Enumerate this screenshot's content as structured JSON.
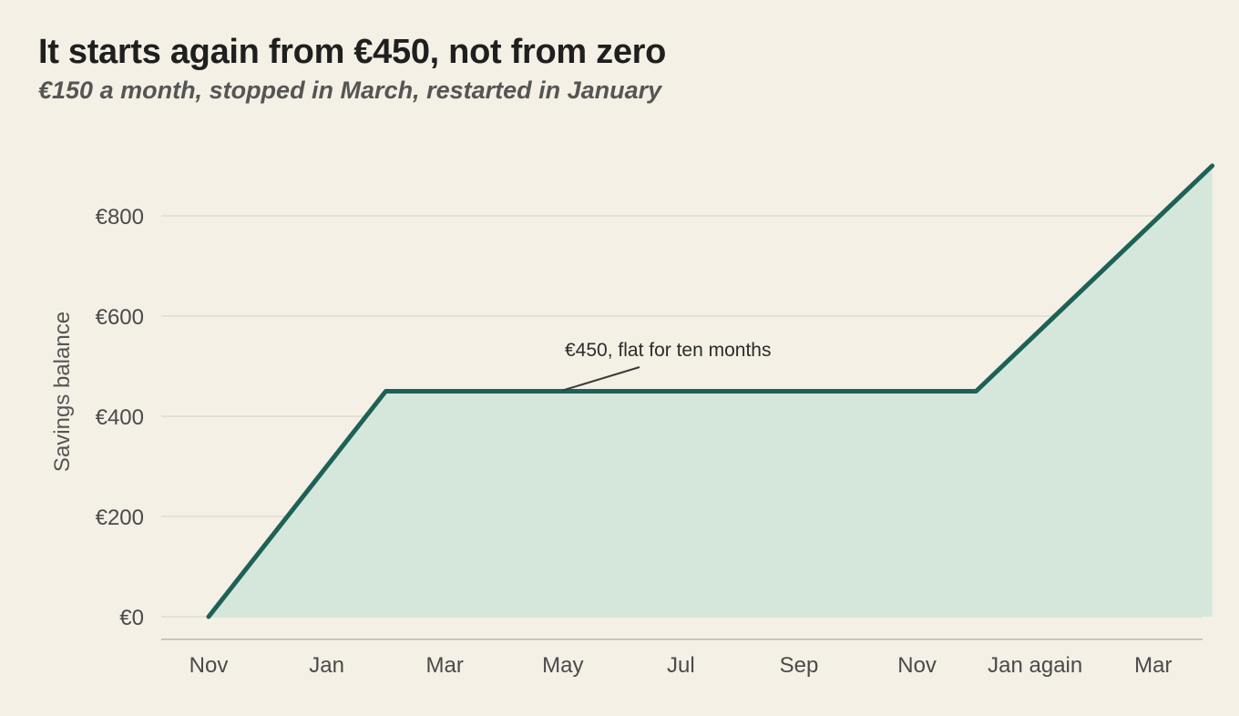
{
  "chart_data": {
    "type": "area",
    "title": "It starts again from €450, not from zero",
    "subtitle": "€150 a month, stopped in March, restarted in January",
    "xlabel": "",
    "ylabel": "Savings balance",
    "categories": [
      "Nov",
      "Jan",
      "Mar",
      "May",
      "Jul",
      "Sep",
      "Nov",
      "Jan again",
      "Mar"
    ],
    "series": [
      {
        "x": [
          0,
          1.5,
          6.5,
          8.5
        ],
        "values": [
          0,
          450,
          450,
          900
        ]
      }
    ],
    "yticks": [
      0,
      200,
      400,
      600,
      800
    ],
    "ytick_labels": [
      "€0",
      "€200",
      "€400",
      "€600",
      "€800"
    ],
    "ylim": [
      -45,
      1000
    ],
    "grid": "horizontal",
    "legend": "none",
    "annotations": [
      {
        "text": "€450, flat for ten months",
        "x": 3,
        "y": 450
      }
    ],
    "colors": {
      "line": "#1e6157",
      "fill": "#d5e7db",
      "grid": "#dedbd1",
      "axis": "#bdb8ad",
      "background": "#f4f0e5"
    }
  }
}
